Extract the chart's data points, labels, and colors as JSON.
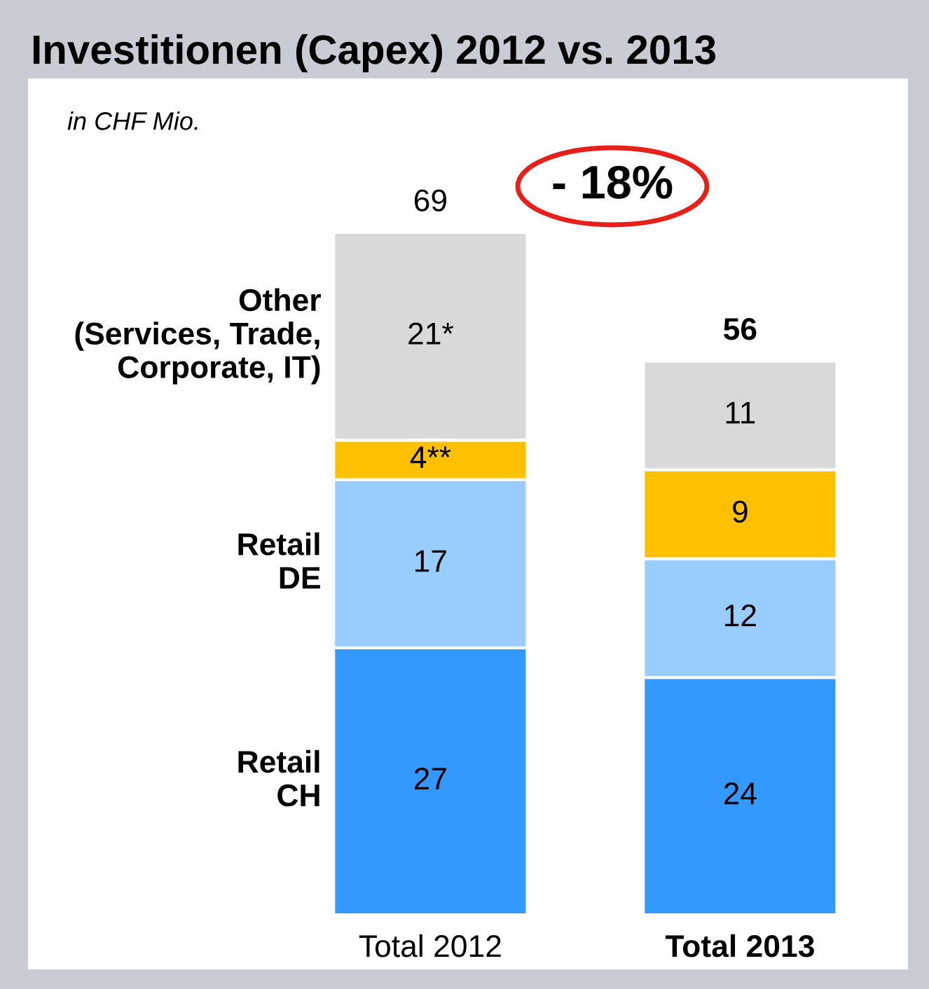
{
  "chart_data": {
    "type": "bar",
    "title": "Investitionen (Capex) 2012 vs. 2013",
    "stacked": true,
    "categories": [
      "Total 2012",
      "Total 2013"
    ],
    "series": [
      {
        "name": "Retail\nCH",
        "color": "#3399ff",
        "values": [
          27,
          24
        ],
        "value_labels": [
          "27",
          "24"
        ]
      },
      {
        "name": "Retail\nDE",
        "color": "#99ccff",
        "values": [
          17,
          12
        ],
        "value_labels": [
          "17",
          "12"
        ]
      },
      {
        "color": "#ffc000",
        "values": [
          4,
          9
        ],
        "value_labels": [
          "4**",
          "9"
        ]
      },
      {
        "name": "Other\n(Services, Trade,\nCorporate, IT)",
        "color": "#d9d9d9",
        "values": [
          21,
          11
        ],
        "value_labels": [
          "21*",
          "11"
        ]
      }
    ],
    "totals": [
      "69",
      "56"
    ],
    "annotations": [
      "in CHF Mio.",
      "- 18%"
    ],
    "legend": false,
    "grid": false
  }
}
